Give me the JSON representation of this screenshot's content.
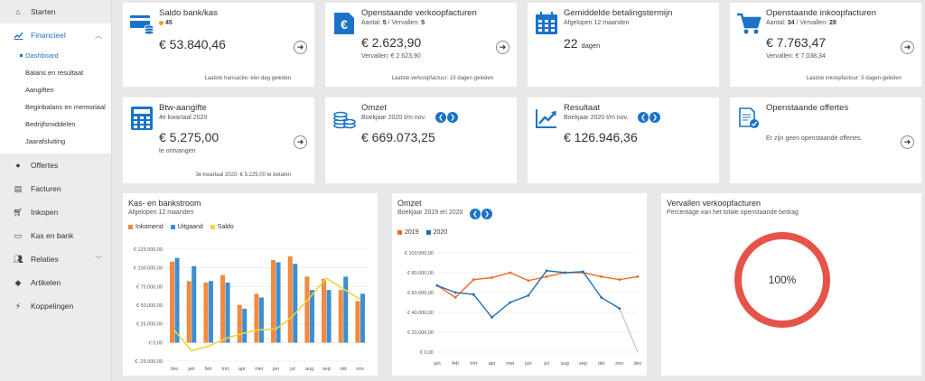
{
  "sidebar": {
    "items": [
      {
        "label": "Starten",
        "icon": "home-icon"
      },
      {
        "label": "Financieel",
        "icon": "chart-line-icon"
      },
      {
        "label": "Offertes",
        "icon": "coins-icon"
      },
      {
        "label": "Facturen",
        "icon": "file-invoice-icon"
      },
      {
        "label": "Inkopen",
        "icon": "cart-icon"
      },
      {
        "label": "Kas en bank",
        "icon": "cash-icon"
      },
      {
        "label": "Relaties",
        "icon": "users-icon"
      },
      {
        "label": "Artikelen",
        "icon": "tag-icon"
      },
      {
        "label": "Koppelingen",
        "icon": "plug-icon"
      }
    ],
    "financieel_sub": [
      "Dashboard",
      "Balans en resultaat",
      "Aangiften",
      "Beginbalans en memoriaal",
      "Bedrijfsmiddelen",
      "Jaarafsluiting"
    ]
  },
  "cards": {
    "saldo": {
      "title": "Saldo bank/kas",
      "count": "45",
      "amount": "€ 53.840,46",
      "footer": "Laatste transactie: één dag geleden"
    },
    "verkoop": {
      "title": "Openstaande verkoopfacturen",
      "sub_label": "Aantal: ",
      "sub_count": "5",
      "sub_sep": " / Vervallen: ",
      "sub_vervallen": "5",
      "amount": "€ 2.623,90",
      "small": "Vervallen: € 2.623,90",
      "footer": "Laatste verkoopfactuur: 15 dagen geleden"
    },
    "betaling": {
      "title": "Gemiddelde betalingstermijn",
      "sub": "Afgelopen 12 maanden",
      "amount": "22",
      "unit": "dagen"
    },
    "inkoop": {
      "title": "Openstaande inkoopfacturen",
      "sub_label": "Aantal: ",
      "sub_count": "34",
      "sub_sep": " / Vervallen: ",
      "sub_vervallen": "28",
      "amount": "€ 7.763,47",
      "small": "Vervallen: € 7.038,34",
      "footer": "Laatste inkoopfactuur: 5 dagen geleden"
    },
    "btw": {
      "title": "Btw-aangifte",
      "sub": "4e kwartaal 2020",
      "amount": "€ 5.275,00",
      "small": "te ontvangen",
      "footer": "3e kwartaal 2020: € 5.225,00 te betalen"
    },
    "omzet": {
      "title": "Omzet",
      "sub": "Boekjaar 2020 t/m nov.",
      "amount": "€ 669.073,25"
    },
    "resultaat": {
      "title": "Resultaat",
      "sub": "Boekjaar 2020 t/m nov.",
      "amount": "€ 126.946,36"
    },
    "offertes": {
      "title": "Openstaande offertes",
      "small": "Er zijn geen openstaande offertes."
    }
  },
  "charts": {
    "kas": {
      "title": "Kas- en bankstroom",
      "sub": "Afgelopen 12 maanden",
      "legend": [
        "Inkomend",
        "Uitgaand",
        "Saldo"
      ],
      "colors": {
        "in": "#f58a3c",
        "out": "#3c8fd2",
        "saldo": "#f5d23c"
      }
    },
    "omzet": {
      "title": "Omzet",
      "sub": "Boekjaar 2019 en 2020",
      "legend": [
        "2019",
        "2020"
      ],
      "colors": {
        "y2019": "#f06a1f",
        "y2020": "#1f6fb8"
      }
    },
    "vervallen": {
      "title": "Vervallen verkoopfacturen",
      "sub": "Percentage van het totale openstaande bedrag",
      "value": "100%"
    }
  },
  "chart_data": [
    {
      "type": "bar",
      "title": "Kas- en bankstroom",
      "categories": [
        "dec",
        "jan",
        "feb",
        "mrt",
        "apr",
        "mei",
        "jun",
        "jul",
        "aug",
        "sep",
        "okt",
        "nov"
      ],
      "yticks": [
        "€ 125.000,00",
        "€ 100.000,00",
        "€ 75.000,00",
        "€ 50.000,00",
        "€ 25.000,00",
        "€ 0,00",
        "€ -25.000,00"
      ],
      "ylim": [
        -25000,
        125000
      ],
      "series": [
        {
          "name": "Inkomend",
          "values": [
            108000,
            82000,
            80000,
            90000,
            50000,
            65000,
            110000,
            115000,
            88000,
            85000,
            70000,
            55000
          ]
        },
        {
          "name": "Uitgaand",
          "values": [
            113000,
            102000,
            82000,
            80000,
            45000,
            60000,
            107000,
            105000,
            70000,
            70000,
            88000,
            65000
          ]
        },
        {
          "name": "Saldo",
          "values": [
            16000,
            -11000,
            -5000,
            5000,
            12000,
            17000,
            18000,
            35000,
            60000,
            86000,
            72000,
            58000
          ]
        }
      ]
    },
    {
      "type": "line",
      "title": "Omzet",
      "categories": [
        "jan",
        "feb",
        "mrt",
        "apr",
        "mei",
        "jun",
        "jul",
        "aug",
        "sep",
        "okt",
        "nov",
        "dec"
      ],
      "yticks": [
        "€ 100.000,00",
        "€ 80.000,00",
        "€ 60.000,00",
        "€ 40.000,00",
        "€ 20.000,00",
        "€ 0,00"
      ],
      "ylim": [
        0,
        100000
      ],
      "series": [
        {
          "name": "2019",
          "values": [
            67000,
            55000,
            73000,
            75000,
            80000,
            72000,
            76000,
            80000,
            80000,
            76000,
            73000,
            76000
          ]
        },
        {
          "name": "2020",
          "values": [
            67000,
            60000,
            58000,
            35000,
            50000,
            57000,
            82000,
            80000,
            81000,
            55000,
            44000,
            0
          ]
        }
      ]
    },
    {
      "type": "pie",
      "title": "Vervallen verkoopfacturen",
      "values": [
        100
      ],
      "labels": [
        "100%"
      ]
    }
  ]
}
